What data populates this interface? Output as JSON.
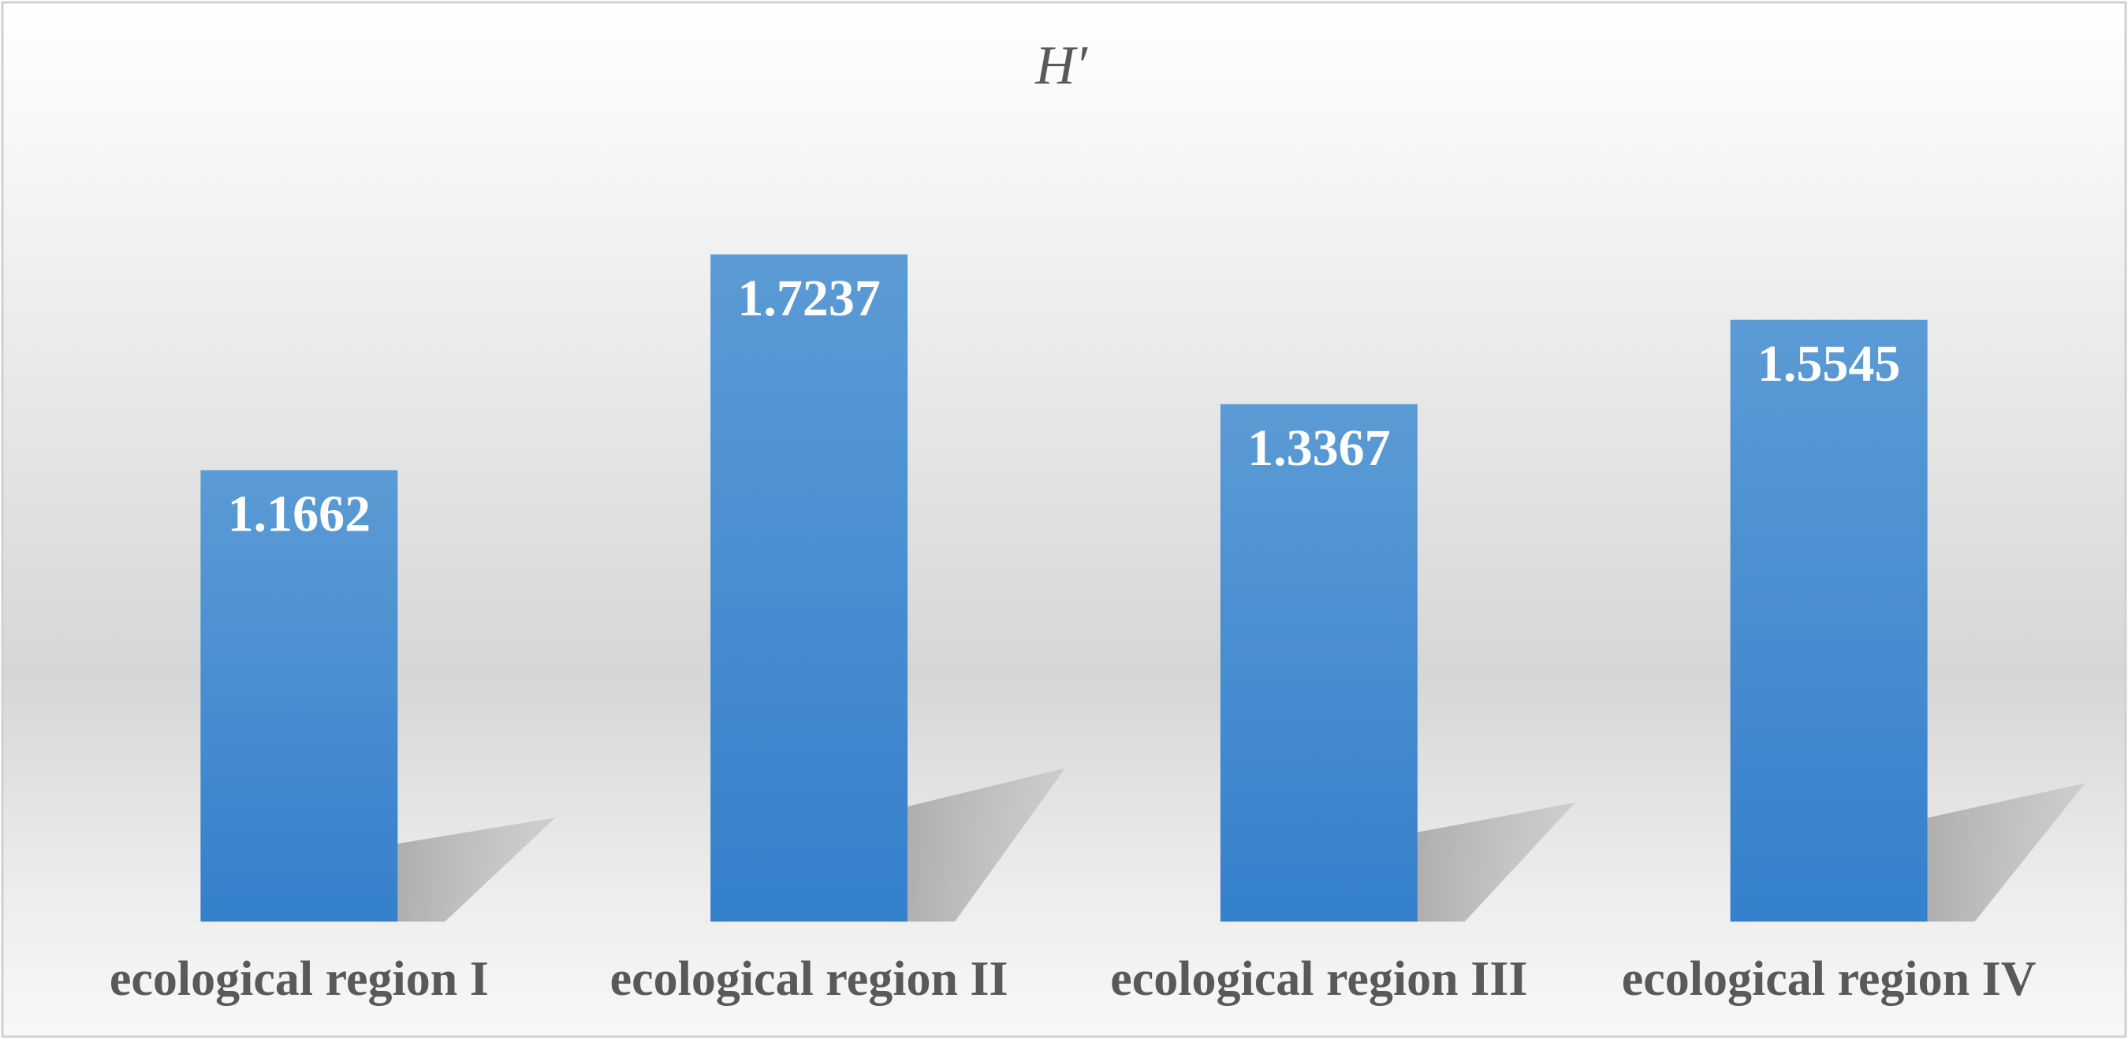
{
  "chart_data": {
    "type": "bar",
    "title": "H′",
    "categories": [
      "ecological region I",
      "ecological region II",
      "ecological region III",
      "ecological region IV"
    ],
    "values": [
      1.1662,
      1.7237,
      1.3367,
      1.5545
    ],
    "color": "#4a8fd3"
  }
}
